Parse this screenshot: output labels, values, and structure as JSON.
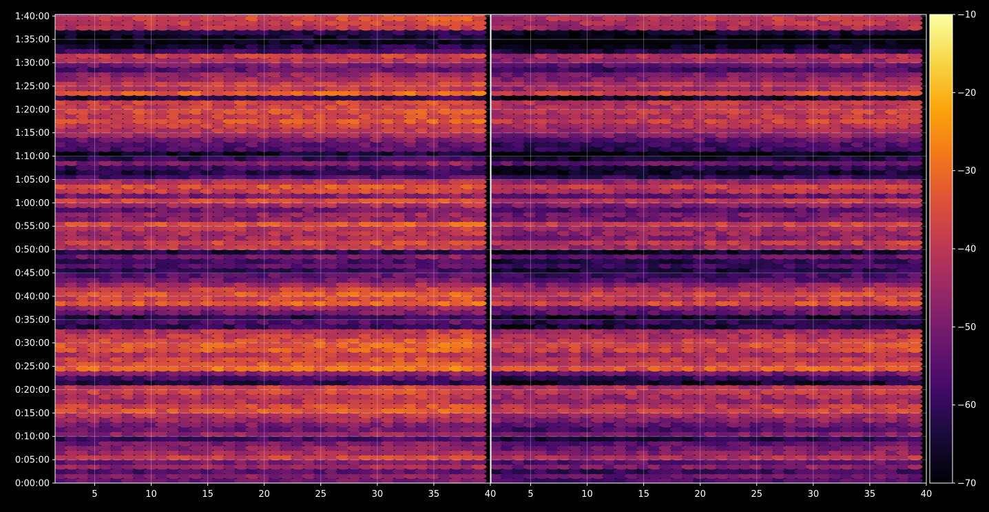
{
  "chart_data": {
    "type": "heatmap",
    "title": "",
    "xlabel": "",
    "ylabel": "",
    "panels": [
      {
        "name": "",
        "x_ticks": [
          5,
          10,
          15,
          20,
          25,
          30,
          35,
          40
        ],
        "xlim": [
          1.5,
          40
        ]
      },
      {
        "name": "",
        "x_ticks": [
          5,
          10,
          15,
          20,
          25,
          30,
          35,
          40
        ],
        "xlim": [
          1.5,
          40
        ]
      }
    ],
    "y_tick_labels": [
      "0:00:00",
      "0:05:00",
      "0:10:00",
      "0:15:00",
      "0:20:00",
      "0:25:00",
      "0:30:00",
      "0:35:00",
      "0:40:00",
      "0:45:00",
      "0:50:00",
      "0:55:00",
      "1:00:00",
      "1:05:00",
      "1:10:00",
      "1:15:00",
      "1:20:00",
      "1:25:00",
      "1:30:00",
      "1:35:00",
      "1:40:00"
    ],
    "y_range_seconds": [
      0,
      6020
    ],
    "x_range": [
      1,
      39
    ],
    "colorbar": {
      "label": "",
      "ticks": [
        "−70",
        "−60",
        "−50",
        "−40",
        "−30",
        "−20",
        "−10"
      ],
      "range": [
        -70,
        -10
      ],
      "colormap": "inferno"
    },
    "row_profile_note": "",
    "row_band_levels": [
      {
        "t": 0,
        "v": -52
      },
      {
        "t": 60,
        "v": -48
      },
      {
        "t": 120,
        "v": -55
      },
      {
        "t": 180,
        "v": -45
      },
      {
        "t": 240,
        "v": -50
      },
      {
        "t": 300,
        "v": -38
      },
      {
        "t": 360,
        "v": -44
      },
      {
        "t": 420,
        "v": -47
      },
      {
        "t": 480,
        "v": -50
      },
      {
        "t": 540,
        "v": -58
      },
      {
        "t": 600,
        "v": -46
      },
      {
        "t": 660,
        "v": -52
      },
      {
        "t": 720,
        "v": -49
      },
      {
        "t": 780,
        "v": -44
      },
      {
        "t": 840,
        "v": -41
      },
      {
        "t": 900,
        "v": -34
      },
      {
        "t": 960,
        "v": -36
      },
      {
        "t": 1020,
        "v": -42
      },
      {
        "t": 1080,
        "v": -40
      },
      {
        "t": 1140,
        "v": -36
      },
      {
        "t": 1200,
        "v": -38
      },
      {
        "t": 1260,
        "v": -62
      },
      {
        "t": 1320,
        "v": -56
      },
      {
        "t": 1380,
        "v": -48
      },
      {
        "t": 1440,
        "v": -29
      },
      {
        "t": 1500,
        "v": -34
      },
      {
        "t": 1560,
        "v": -36
      },
      {
        "t": 1620,
        "v": -40
      },
      {
        "t": 1680,
        "v": -33
      },
      {
        "t": 1740,
        "v": -32
      },
      {
        "t": 1800,
        "v": -35
      },
      {
        "t": 1860,
        "v": -38
      },
      {
        "t": 1920,
        "v": -40
      },
      {
        "t": 1980,
        "v": -60
      },
      {
        "t": 2040,
        "v": -56
      },
      {
        "t": 2100,
        "v": -62
      },
      {
        "t": 2160,
        "v": -50
      },
      {
        "t": 2220,
        "v": -46
      },
      {
        "t": 2280,
        "v": -32
      },
      {
        "t": 2340,
        "v": -36
      },
      {
        "t": 2400,
        "v": -33
      },
      {
        "t": 2460,
        "v": -38
      },
      {
        "t": 2520,
        "v": -44
      },
      {
        "t": 2580,
        "v": -52
      },
      {
        "t": 2640,
        "v": -54
      },
      {
        "t": 2700,
        "v": -60
      },
      {
        "t": 2760,
        "v": -55
      },
      {
        "t": 2820,
        "v": -58
      },
      {
        "t": 2880,
        "v": -50
      },
      {
        "t": 2940,
        "v": -62
      },
      {
        "t": 3000,
        "v": -40
      },
      {
        "t": 3060,
        "v": -36
      },
      {
        "t": 3120,
        "v": -44
      },
      {
        "t": 3180,
        "v": -42
      },
      {
        "t": 3240,
        "v": -40
      },
      {
        "t": 3300,
        "v": -34
      },
      {
        "t": 3360,
        "v": -48
      },
      {
        "t": 3420,
        "v": -46
      },
      {
        "t": 3480,
        "v": -52
      },
      {
        "t": 3540,
        "v": -44
      },
      {
        "t": 3600,
        "v": -36
      },
      {
        "t": 3660,
        "v": -50
      },
      {
        "t": 3720,
        "v": -38
      },
      {
        "t": 3780,
        "v": -34
      },
      {
        "t": 3840,
        "v": -42
      },
      {
        "t": 3900,
        "v": -56
      },
      {
        "t": 3960,
        "v": -62
      },
      {
        "t": 4020,
        "v": -58
      },
      {
        "t": 4080,
        "v": -48
      },
      {
        "t": 4140,
        "v": -60
      },
      {
        "t": 4200,
        "v": -66
      },
      {
        "t": 4260,
        "v": -56
      },
      {
        "t": 4320,
        "v": -54
      },
      {
        "t": 4380,
        "v": -50
      },
      {
        "t": 4440,
        "v": -44
      },
      {
        "t": 4500,
        "v": -40
      },
      {
        "t": 4560,
        "v": -38
      },
      {
        "t": 4620,
        "v": -34
      },
      {
        "t": 4680,
        "v": -37
      },
      {
        "t": 4740,
        "v": -35
      },
      {
        "t": 4800,
        "v": -38
      },
      {
        "t": 4860,
        "v": -36
      },
      {
        "t": 4920,
        "v": -62
      },
      {
        "t": 4980,
        "v": -32
      },
      {
        "t": 5040,
        "v": -40
      },
      {
        "t": 5100,
        "v": -38
      },
      {
        "t": 5160,
        "v": -44
      },
      {
        "t": 5220,
        "v": -46
      },
      {
        "t": 5280,
        "v": -54
      },
      {
        "t": 5340,
        "v": -50
      },
      {
        "t": 5400,
        "v": -42
      },
      {
        "t": 5460,
        "v": -38
      },
      {
        "t": 5520,
        "v": -58
      },
      {
        "t": 5580,
        "v": -64
      },
      {
        "t": 5640,
        "v": -68
      },
      {
        "t": 5700,
        "v": -66
      },
      {
        "t": 5760,
        "v": -62
      },
      {
        "t": 5820,
        "v": -40
      },
      {
        "t": 5880,
        "v": -38
      },
      {
        "t": 5940,
        "v": -36
      },
      {
        "t": 6000,
        "v": -42
      }
    ]
  }
}
